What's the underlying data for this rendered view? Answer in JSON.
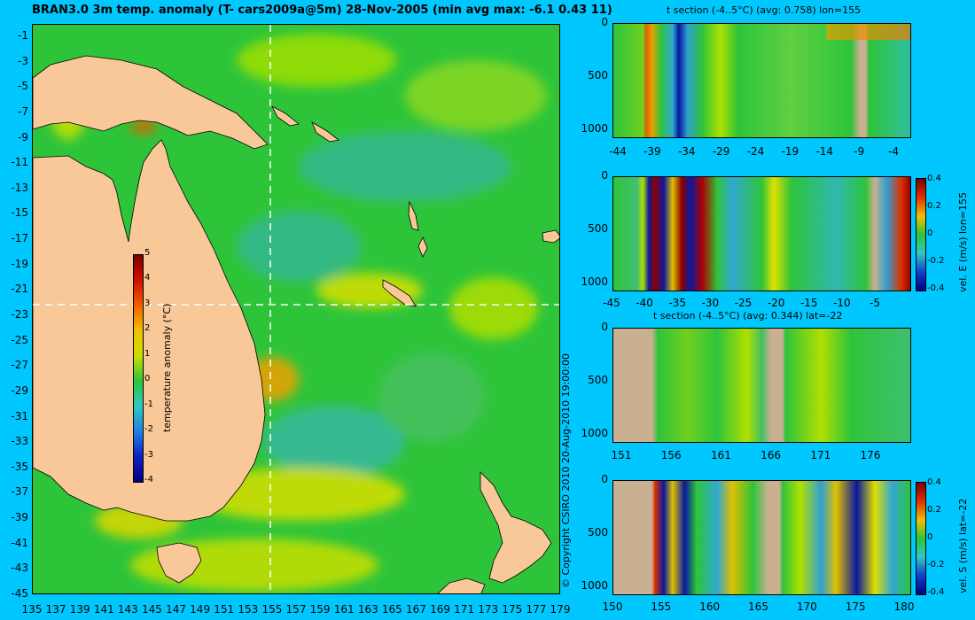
{
  "main_title": "BRAN3.0 3m temp. anomaly (T- cars2009a@5m) 28-Nov-2005 (min avg max: -6.1 0.43 11)",
  "map": {
    "lat_labels": [
      "-1",
      "-3",
      "-5",
      "-7",
      "-9",
      "-11",
      "-13",
      "-15",
      "-17",
      "-19",
      "-21",
      "-23",
      "-25",
      "-27",
      "-29",
      "-31",
      "-33",
      "-35",
      "-37",
      "-39",
      "-41",
      "-43",
      "-45"
    ],
    "lon_labels": [
      "135",
      "137",
      "139",
      "141",
      "143",
      "145",
      "147",
      "149",
      "151",
      "153",
      "155",
      "157",
      "159",
      "161",
      "163",
      "165",
      "167",
      "169",
      "171",
      "173",
      "175",
      "177",
      "179"
    ],
    "colorbar": {
      "label": "temperature anomaly (°C)",
      "ticks": [
        "5",
        "4",
        "3",
        "2",
        "1",
        "0",
        "-1",
        "-2",
        "-3",
        "-4"
      ]
    },
    "colors": {
      "ocean": "#2ec43a",
      "land": "#f8c898",
      "warm": "#e4e000",
      "cool": "#34b8a0"
    }
  },
  "copyright": "© Copyright CSIRO 2010   20-Aug-2010 19:00:00",
  "panels": {
    "p1": {
      "title": "t section (-4..5°C) (avg: 0.758) lon=155",
      "y_ticks": [
        "0",
        "500",
        "1000"
      ],
      "x_ticks": [
        "-44",
        "-39",
        "-34",
        "-29",
        "-24",
        "-19",
        "-14",
        "-9",
        "-4"
      ]
    },
    "p2": {
      "y_ticks": [
        "0",
        "500",
        "1000"
      ],
      "x_ticks": [
        "-45",
        "-40",
        "-35",
        "-30",
        "-25",
        "-20",
        "-15",
        "-10",
        "-5"
      ],
      "colorbar_label": "vel. E (m/s) lon=155",
      "colorbar_ticks": [
        "0.4",
        "0.2",
        "0",
        "-0.2",
        "-0.4"
      ]
    },
    "p3": {
      "title": "t section (-4..5°C) (avg: 0.344) lat=-22",
      "y_ticks": [
        "0",
        "500",
        "1000"
      ],
      "x_ticks": [
        "151",
        "156",
        "161",
        "166",
        "171",
        "176"
      ]
    },
    "p4": {
      "y_ticks": [
        "0",
        "500",
        "1000"
      ],
      "x_ticks": [
        "150",
        "155",
        "160",
        "165",
        "170",
        "175",
        "180"
      ],
      "colorbar_label": "vel. S (m/s) lat=-22",
      "colorbar_ticks": [
        "0.4",
        "0.2",
        "0",
        "-0.2",
        "-0.4"
      ]
    }
  }
}
